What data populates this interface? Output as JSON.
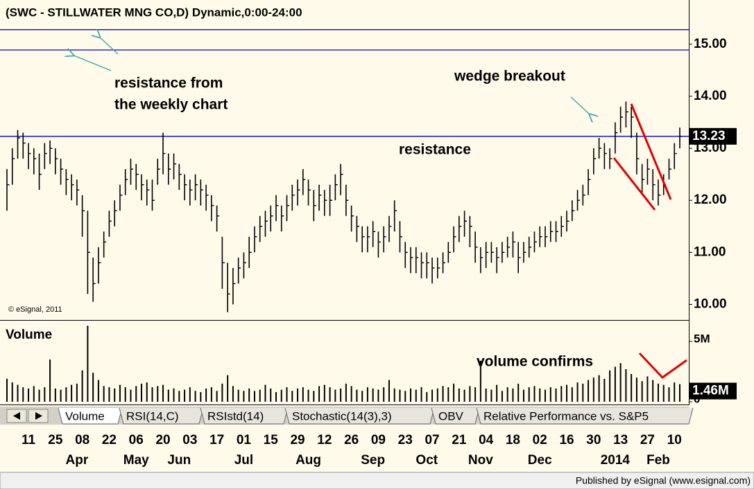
{
  "chart_data": [
    {
      "type": "ohlc",
      "title": "(SWC - STILLWATER MNG CO,D) Dynamic,0:00-24:00",
      "copyright": "© eSignal, 2011",
      "annotations": [
        "resistance from",
        "the weekly chart",
        "wedge breakout",
        "resistance"
      ],
      "ylim": [
        9.7,
        15.85
      ],
      "yticks": [
        {
          "value": 10,
          "label": "10.00"
        },
        {
          "value": 11,
          "label": "11.00"
        },
        {
          "value": 12,
          "label": "12.00"
        },
        {
          "value": 13,
          "label": "13.00"
        },
        {
          "value": 14,
          "label": "14.00"
        },
        {
          "value": 15,
          "label": "15.00"
        }
      ],
      "hlines": [
        15.28,
        14.89,
        13.23
      ],
      "hline_color": "#0000cc",
      "color": "#000000",
      "categories": [
        null,
        null,
        null,
        null,
        "11",
        null,
        null,
        null,
        null,
        "25",
        null,
        null,
        null,
        null,
        "08",
        null,
        null,
        null,
        null,
        "22",
        null,
        null,
        null,
        null,
        "06",
        null,
        null,
        null,
        null,
        "20",
        null,
        null,
        null,
        null,
        "03",
        null,
        null,
        null,
        null,
        "17",
        null,
        null,
        null,
        null,
        "01",
        null,
        null,
        null,
        null,
        "15",
        null,
        null,
        null,
        null,
        "29",
        null,
        null,
        null,
        null,
        "12",
        null,
        null,
        null,
        null,
        "26",
        null,
        null,
        null,
        null,
        "09",
        null,
        null,
        null,
        null,
        "23",
        null,
        null,
        null,
        null,
        "07",
        null,
        null,
        null,
        null,
        "21",
        null,
        null,
        null,
        null,
        "04",
        null,
        null,
        null,
        null,
        "18",
        null,
        null,
        null,
        null,
        "02",
        null,
        null,
        null,
        null,
        "16",
        null,
        null,
        null,
        null,
        "30",
        null,
        null,
        null,
        null,
        "13",
        null,
        null,
        null,
        null,
        "27",
        null,
        null,
        null,
        null,
        "10",
        null
      ],
      "months": [
        null,
        null,
        null,
        null,
        null,
        null,
        null,
        null,
        null,
        null,
        null,
        null,
        null,
        "Apr",
        null,
        null,
        null,
        null,
        null,
        null,
        null,
        null,
        null,
        null,
        "May",
        null,
        null,
        null,
        null,
        null,
        null,
        null,
        "Jun",
        null,
        null,
        null,
        null,
        null,
        null,
        null,
        null,
        null,
        null,
        null,
        "Jul",
        null,
        null,
        null,
        null,
        null,
        null,
        null,
        null,
        null,
        null,
        null,
        "Aug",
        null,
        null,
        null,
        null,
        null,
        null,
        null,
        null,
        null,
        null,
        null,
        "Sep",
        null,
        null,
        null,
        null,
        null,
        null,
        null,
        null,
        null,
        "Oct",
        null,
        null,
        null,
        null,
        null,
        null,
        null,
        null,
        null,
        "Nov",
        null,
        null,
        null,
        null,
        null,
        null,
        null,
        null,
        null,
        null,
        "Dec",
        null,
        null,
        null,
        null,
        null,
        null,
        null,
        null,
        null,
        null,
        null,
        null,
        null,
        "2014",
        null,
        null,
        null,
        null,
        null,
        null,
        null,
        "Feb",
        null,
        null,
        null,
        null
      ],
      "high": [
        12.6,
        13.0,
        13.35,
        13.3,
        13.1,
        13.0,
        12.9,
        13.1,
        13.15,
        13.0,
        12.8,
        12.6,
        12.5,
        12.4,
        12.1,
        11.8,
        10.9,
        11.1,
        11.4,
        11.8,
        12.0,
        12.3,
        12.6,
        12.8,
        12.7,
        12.5,
        12.4,
        12.4,
        12.8,
        13.3,
        12.9,
        12.9,
        12.7,
        12.5,
        12.4,
        12.5,
        12.4,
        12.3,
        12.1,
        11.9,
        11.3,
        10.8,
        10.7,
        10.9,
        11.0,
        11.3,
        11.5,
        11.7,
        11.8,
        11.9,
        12.1,
        11.9,
        12.1,
        12.3,
        12.4,
        12.6,
        12.4,
        12.2,
        12.3,
        12.2,
        12.3,
        12.5,
        12.7,
        12.3,
        11.9,
        11.7,
        11.5,
        11.5,
        11.6,
        11.4,
        11.5,
        11.7,
        12.0,
        11.6,
        11.2,
        11.1,
        11.1,
        11.0,
        11.0,
        10.9,
        10.9,
        11.0,
        11.2,
        11.5,
        11.7,
        11.8,
        11.7,
        11.4,
        11.1,
        11.2,
        11.2,
        11.1,
        11.2,
        11.3,
        11.4,
        11.2,
        11.2,
        11.3,
        11.4,
        11.5,
        11.5,
        11.6,
        11.6,
        11.7,
        11.8,
        12.0,
        12.2,
        12.3,
        12.6,
        13.0,
        13.2,
        13.1,
        13.0,
        13.5,
        13.8,
        13.9,
        13.8,
        13.3,
        12.7,
        12.8,
        12.6,
        12.4,
        12.5,
        12.8,
        13.1,
        13.4
      ],
      "low": [
        11.8,
        12.3,
        12.8,
        12.8,
        12.6,
        12.5,
        12.2,
        12.6,
        12.7,
        12.5,
        12.3,
        12.1,
        12.0,
        11.9,
        11.3,
        10.2,
        10.05,
        10.4,
        10.9,
        11.3,
        11.5,
        11.8,
        12.1,
        12.3,
        12.2,
        12.0,
        11.9,
        11.8,
        12.3,
        12.5,
        12.3,
        12.4,
        12.2,
        12.0,
        11.9,
        12.0,
        11.9,
        11.8,
        11.6,
        11.4,
        10.3,
        9.85,
        10.0,
        10.4,
        10.5,
        10.7,
        11.0,
        11.2,
        11.3,
        11.4,
        11.6,
        11.4,
        11.6,
        11.8,
        11.9,
        12.1,
        11.9,
        11.6,
        11.8,
        11.7,
        11.7,
        12.0,
        12.1,
        11.7,
        11.4,
        11.2,
        11.0,
        11.0,
        11.1,
        10.9,
        11.0,
        11.2,
        11.4,
        11.0,
        10.7,
        10.6,
        10.6,
        10.5,
        10.5,
        10.4,
        10.5,
        10.6,
        10.8,
        11.0,
        11.2,
        11.3,
        11.1,
        10.8,
        10.6,
        10.7,
        10.8,
        10.6,
        10.8,
        10.9,
        10.9,
        10.6,
        10.8,
        10.9,
        11.0,
        11.1,
        11.1,
        11.2,
        11.2,
        11.3,
        11.4,
        11.6,
        11.8,
        11.9,
        12.1,
        12.5,
        12.8,
        12.6,
        12.6,
        12.9,
        13.3,
        13.4,
        13.2,
        12.5,
        12.1,
        12.3,
        12.0,
        11.9,
        12.1,
        12.4,
        12.6,
        13.0
      ],
      "close": [
        12.3,
        12.8,
        13.2,
        13.1,
        12.9,
        12.8,
        12.5,
        12.9,
        13.0,
        12.8,
        12.6,
        12.4,
        12.3,
        12.2,
        11.8,
        11.0,
        10.4,
        10.8,
        11.2,
        11.6,
        11.8,
        12.1,
        12.4,
        12.6,
        12.5,
        12.3,
        12.2,
        12.0,
        12.6,
        12.9,
        12.6,
        12.7,
        12.5,
        12.3,
        12.2,
        12.3,
        12.2,
        12.1,
        11.9,
        11.7,
        10.8,
        10.2,
        10.4,
        10.7,
        10.8,
        11.0,
        11.3,
        11.5,
        11.6,
        11.7,
        11.9,
        11.7,
        11.9,
        12.1,
        12.2,
        12.4,
        12.2,
        11.9,
        12.1,
        12.0,
        12.0,
        12.3,
        12.5,
        12.0,
        11.7,
        11.5,
        11.3,
        11.3,
        11.4,
        11.2,
        11.3,
        11.5,
        11.8,
        11.3,
        11.0,
        10.9,
        10.9,
        10.8,
        10.8,
        10.7,
        10.7,
        10.8,
        11.0,
        11.3,
        11.5,
        11.6,
        11.5,
        11.1,
        10.9,
        11.0,
        11.0,
        10.9,
        11.0,
        11.1,
        11.2,
        10.9,
        11.0,
        11.1,
        11.2,
        11.3,
        11.3,
        11.4,
        11.4,
        11.5,
        11.6,
        11.8,
        12.0,
        12.1,
        12.4,
        12.8,
        13.0,
        12.9,
        12.8,
        13.3,
        13.6,
        13.7,
        13.6,
        12.8,
        12.4,
        12.6,
        12.3,
        12.1,
        12.3,
        12.6,
        12.9,
        13.23
      ]
    },
    {
      "type": "bar",
      "title": "Volume",
      "annotations": [
        "volume confirms"
      ],
      "color": "#000000",
      "ylim": [
        0,
        6.72
      ],
      "yticks": [
        {
          "value": 5,
          "label": "5M"
        },
        0
      ],
      "values": [
        1.9,
        1.6,
        1.4,
        1.2,
        1.1,
        1.3,
        1.0,
        1.2,
        3.5,
        1.1,
        1.0,
        1.2,
        1.4,
        1.5,
        2.6,
        6.3,
        2.4,
        1.8,
        1.3,
        1.2,
        1.1,
        1.4,
        1.2,
        1.0,
        1.3,
        1.5,
        1.6,
        1.2,
        1.3,
        1.4,
        1.0,
        1.1,
        0.9,
        1.0,
        1.2,
        0.9,
        0.8,
        1.1,
        1.2,
        0.9,
        1.5,
        2.2,
        1.3,
        1.0,
        0.9,
        1.1,
        0.9,
        1.0,
        1.4,
        1.1,
        0.8,
        1.0,
        1.2,
        0.9,
        1.1,
        1.2,
        1.0,
        0.9,
        1.3,
        1.4,
        1.2,
        1.0,
        1.1,
        1.5,
        1.3,
        1.0,
        0.9,
        1.2,
        1.1,
        1.0,
        1.2,
        1.8,
        1.1,
        1.0,
        0.9,
        1.1,
        1.0,
        1.2,
        0.8,
        1.0,
        1.1,
        1.3,
        1.2,
        1.5,
        1.1,
        1.0,
        1.3,
        1.2,
        3.4,
        1.1,
        1.0,
        1.4,
        0.9,
        1.2,
        1.1,
        1.5,
        1.0,
        1.2,
        1.3,
        1.1,
        1.0,
        1.2,
        1.1,
        1.3,
        1.4,
        1.2,
        1.6,
        1.5,
        1.8,
        2.0,
        2.2,
        1.9,
        2.6,
        2.9,
        3.2,
        2.7,
        2.3,
        2.0,
        1.7,
        2.1,
        1.8,
        1.5,
        1.4,
        1.2,
        1.6,
        1.46
      ],
      "value_labels": [
        null,
        null,
        null,
        null,
        null,
        null,
        null,
        null,
        null,
        null,
        null,
        null,
        null,
        null,
        null,
        null,
        null,
        null,
        null,
        null,
        null,
        null,
        null,
        null,
        null,
        null,
        null,
        null,
        null,
        null,
        null,
        null,
        null,
        null,
        null,
        null,
        null,
        null,
        null,
        null,
        null,
        null,
        null,
        null,
        null,
        null,
        null,
        null,
        null,
        null,
        null,
        null,
        null,
        null,
        null,
        null,
        null,
        null,
        null,
        null,
        null,
        null,
        null,
        null,
        null,
        null,
        null,
        null,
        null,
        null,
        null,
        null,
        null,
        null,
        null,
        null,
        null,
        null,
        null,
        null,
        null,
        null,
        null,
        null,
        null,
        null,
        null,
        null,
        null,
        null,
        null,
        null,
        null,
        null,
        null,
        null,
        null,
        null,
        null,
        null,
        null,
        null,
        null,
        null,
        null,
        null,
        null,
        null,
        null,
        null,
        null,
        null,
        null,
        null,
        null,
        null,
        null,
        null,
        null,
        null,
        null,
        null,
        null,
        null,
        null,
        "1.46M"
      ]
    }
  ],
  "tabs": [
    "Volume",
    "RSI(14,C)",
    "RSIstd(14)",
    "Stochastic(14(3),3)",
    "OBV",
    "Relative Performance vs. S&P5"
  ],
  "footer": "Published by eSignal (www.esignal.com)"
}
